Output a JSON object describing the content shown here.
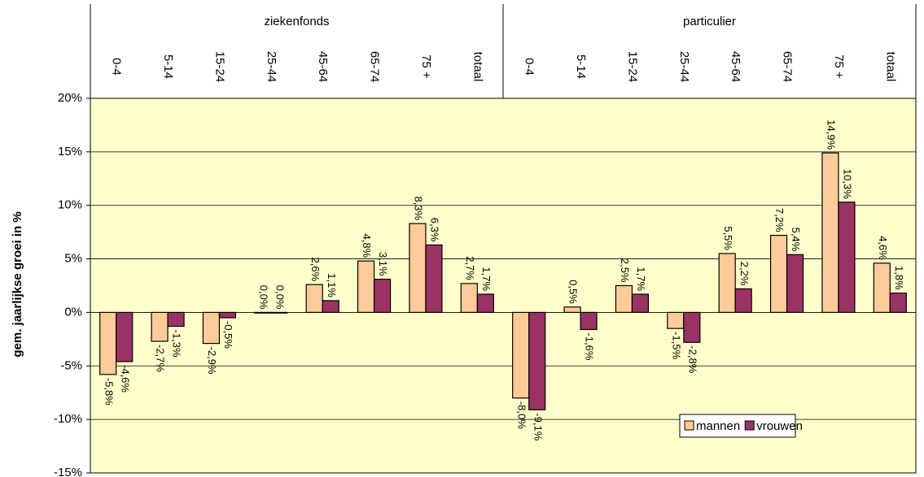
{
  "chart_data": {
    "type": "bar",
    "y_label": "gem. jaarlijkse groei in %",
    "category_groups": [
      "ziekenfonds",
      "particulier"
    ],
    "categories": [
      "0-4",
      "5-14",
      "15-24",
      "25-44",
      "45-64",
      "65-74",
      "75 +",
      "totaal",
      "0-4",
      "5-14",
      "15-24",
      "25-44",
      "45-64",
      "65-74",
      "75 +",
      "totaal"
    ],
    "series": [
      {
        "name": "mannen",
        "color": "#ffcc99",
        "values": [
          -5.8,
          -2.7,
          -2.9,
          0.0,
          2.6,
          4.8,
          8.3,
          2.7,
          -8.0,
          0.5,
          2.5,
          -1.5,
          5.5,
          7.2,
          14.9,
          4.6
        ],
        "value_labels": [
          "-5,8%",
          "-2,7%",
          "-2,9%",
          "0,0%",
          "2,6%",
          "4,8%",
          "8,3%",
          "2,7%",
          "-8,0%",
          "0,5%",
          "2,5%",
          "-1,5%",
          "5,5%",
          "7,2%",
          "14,9%",
          "4,6%"
        ]
      },
      {
        "name": "vrouwen",
        "color": "#993366",
        "values": [
          -4.6,
          -1.3,
          -0.5,
          0.0,
          1.1,
          3.1,
          6.3,
          1.7,
          -9.1,
          -1.6,
          1.7,
          -2.8,
          2.2,
          5.4,
          10.3,
          1.8
        ],
        "value_labels": [
          "-4,6%",
          "-1,3%",
          "-0,5%",
          "0,0%",
          "1,1%",
          "3,1%",
          "6,3%",
          "1,7%",
          "-9,1%",
          "-1,6%",
          "1,7%",
          "-2,8%",
          "2,2%",
          "5,4%",
          "10,3%",
          "1,8%"
        ]
      }
    ],
    "ylim": [
      -15,
      20
    ],
    "yticks": [
      {
        "value": -15,
        "label": "-15%"
      },
      {
        "value": -10,
        "label": "-10%"
      },
      {
        "value": -5,
        "label": "-5%"
      },
      {
        "value": 0,
        "label": "0%"
      },
      {
        "value": 5,
        "label": "5%"
      },
      {
        "value": 10,
        "label": "10%"
      },
      {
        "value": 15,
        "label": "15%"
      },
      {
        "value": 20,
        "label": "20%"
      }
    ],
    "grid": true,
    "plot_background": "#ffffcc",
    "legend": "lower right"
  }
}
